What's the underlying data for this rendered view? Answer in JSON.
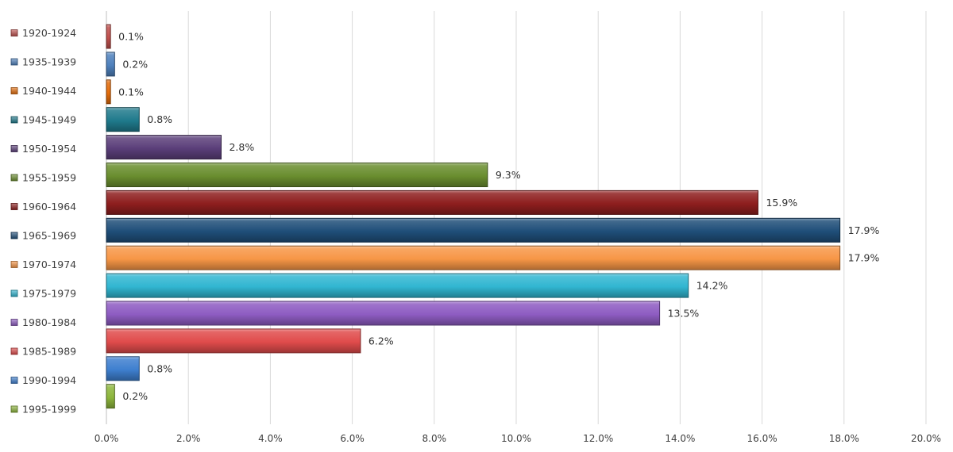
{
  "chart_data": {
    "type": "bar",
    "orientation": "horizontal",
    "title": "",
    "xlabel": "",
    "ylabel": "",
    "xlim": [
      0,
      20
    ],
    "x_ticks": [
      "0.0%",
      "2.0%",
      "4.0%",
      "6.0%",
      "8.0%",
      "10.0%",
      "12.0%",
      "14.0%",
      "16.0%",
      "18.0%",
      "20.0%"
    ],
    "grid": "vertical",
    "legend_position": "left",
    "categories": [
      "1920-1924",
      "1935-1939",
      "1940-1944",
      "1945-1949",
      "1950-1954",
      "1955-1959",
      "1960-1964",
      "1965-1969",
      "1970-1974",
      "1975-1979",
      "1980-1984",
      "1985-1989",
      "1990-1994",
      "1995-1999"
    ],
    "values": [
      0.1,
      0.2,
      0.1,
      0.8,
      2.8,
      9.3,
      15.9,
      17.9,
      17.9,
      14.2,
      13.5,
      6.2,
      0.8,
      0.2
    ],
    "labels": [
      "0.1%",
      "0.2%",
      "0.1%",
      "0.8%",
      "2.8%",
      "9.3%",
      "15.9%",
      "17.9%",
      "17.9%",
      "14.2%",
      "13.5%",
      "6.2%",
      "0.8%",
      "0.2%"
    ],
    "colors": [
      "#C0504D",
      "#4F81BD",
      "#E46C0A",
      "#1F7A8C",
      "#5B3F7A",
      "#6A8E2F",
      "#8E1E1E",
      "#1F4E79",
      "#F79646",
      "#31B6D1",
      "#8E5CC2",
      "#E04B4B",
      "#3E7FCF",
      "#8DB63C"
    ]
  }
}
